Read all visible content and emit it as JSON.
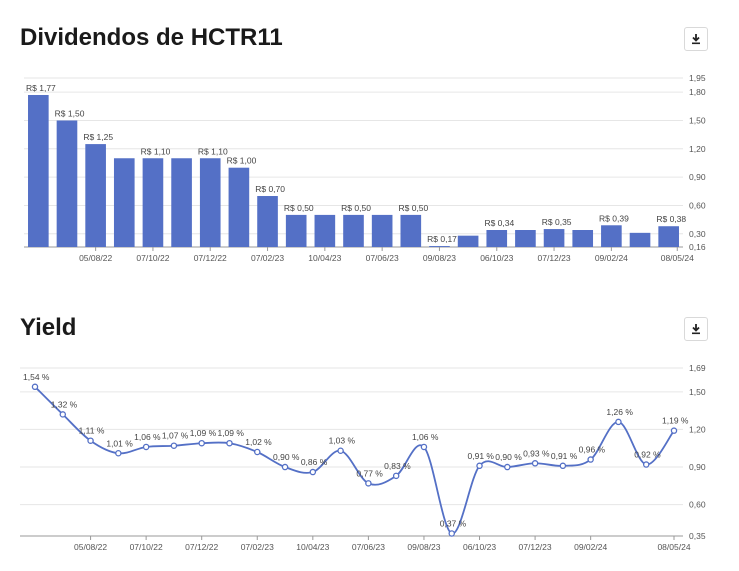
{
  "titles": {
    "dividends": "Dividendos de HCTR11",
    "yield": "Yield"
  },
  "icons": {
    "download": "download-icon"
  },
  "colors": {
    "bar": "#5470c6",
    "line": "#5470c6",
    "grid": "#e6e6e6",
    "text": "#555555"
  },
  "chart_data": [
    {
      "type": "bar",
      "values": [
        1.77,
        1.5,
        1.25,
        1.1,
        1.1,
        1.1,
        1.1,
        1.0,
        0.7,
        0.5,
        0.5,
        0.5,
        0.5,
        0.5,
        0.17,
        0.28,
        0.34,
        0.34,
        0.35,
        0.34,
        0.39,
        0.31,
        0.38
      ],
      "labels": [
        "R$ 1,77",
        "R$ 1,50",
        "R$ 1,25",
        "",
        "R$ 1,10",
        "",
        "R$ 1,10",
        "R$ 1,00",
        "R$ 0,70",
        "R$ 0,50",
        "",
        "R$ 0,50",
        "",
        "R$ 0,50",
        "R$ 0,17",
        "",
        "R$ 0,34",
        "",
        "R$ 0,35",
        "",
        "R$ 0,39",
        "",
        "R$ 0,38"
      ],
      "xticks": [
        {
          "i": 2,
          "label": "05/08/22"
        },
        {
          "i": 4,
          "label": "07/10/22"
        },
        {
          "i": 6,
          "label": "07/12/22"
        },
        {
          "i": 8,
          "label": "07/02/23"
        },
        {
          "i": 10,
          "label": "10/04/23"
        },
        {
          "i": 12,
          "label": "07/06/23"
        },
        {
          "i": 14,
          "label": "09/08/23"
        },
        {
          "i": 16,
          "label": "06/10/23"
        },
        {
          "i": 18,
          "label": "07/12/23"
        },
        {
          "i": 20,
          "label": "09/02/24"
        },
        {
          "i": 22.3,
          "label": "08/05/24"
        }
      ],
      "ylim": [
        0.16,
        1.95
      ],
      "yticks": [
        {
          "v": 1.95,
          "label": "1,95"
        },
        {
          "v": 1.8,
          "label": "1,80"
        },
        {
          "v": 1.5,
          "label": "1,50"
        },
        {
          "v": 1.2,
          "label": "1,20"
        },
        {
          "v": 0.9,
          "label": "0,90"
        },
        {
          "v": 0.6,
          "label": "0,60"
        },
        {
          "v": 0.3,
          "label": "0,30"
        },
        {
          "v": 0.16,
          "label": "0,16"
        }
      ],
      "grid": true
    },
    {
      "type": "line",
      "values": [
        1.54,
        1.32,
        1.11,
        1.01,
        1.06,
        1.07,
        1.09,
        1.09,
        1.02,
        0.9,
        0.86,
        1.03,
        0.77,
        0.83,
        1.06,
        0.37,
        0.91,
        0.9,
        0.93,
        0.91,
        0.96,
        1.26,
        0.92,
        1.19
      ],
      "labels": [
        "1,54 %",
        "1,32 %",
        "1,11 %",
        "1,01 %",
        "1,06 %",
        "1,07 %",
        "1,09 %",
        "1,09 %",
        "1,02 %",
        "0,90 %",
        "0,86 %",
        "1,03 %",
        "0,77 %",
        "0,83 %",
        "1,06 %",
        "0,37 %",
        "0,91 %",
        "0,90 %",
        "0,93 %",
        "0,91 %",
        "0,96 %",
        "1,26 %",
        "0,92 %",
        "1,19 %"
      ],
      "xticks": [
        {
          "i": 2,
          "label": "05/08/22"
        },
        {
          "i": 4,
          "label": "07/10/22"
        },
        {
          "i": 6,
          "label": "07/12/22"
        },
        {
          "i": 8,
          "label": "07/02/23"
        },
        {
          "i": 10,
          "label": "10/04/23"
        },
        {
          "i": 12,
          "label": "07/06/23"
        },
        {
          "i": 14,
          "label": "09/08/23"
        },
        {
          "i": 16,
          "label": "06/10/23"
        },
        {
          "i": 18,
          "label": "07/12/23"
        },
        {
          "i": 20,
          "label": "09/02/24"
        },
        {
          "i": 23,
          "label": "08/05/24"
        }
      ],
      "ylim": [
        0.35,
        1.69
      ],
      "yticks": [
        {
          "v": 1.69,
          "label": "1,69"
        },
        {
          "v": 1.5,
          "label": "1,50"
        },
        {
          "v": 1.2,
          "label": "1,20"
        },
        {
          "v": 0.9,
          "label": "0,90"
        },
        {
          "v": 0.6,
          "label": "0,60"
        },
        {
          "v": 0.35,
          "label": "0,35"
        }
      ],
      "grid": true
    }
  ]
}
